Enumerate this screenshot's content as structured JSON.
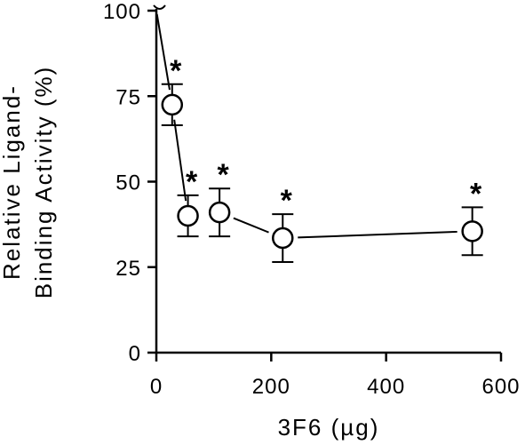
{
  "chart_data": {
    "type": "scatter",
    "xlabel": "3F6 (µg)",
    "ylabel_lines": [
      "Relative Ligand-",
      "Binding Activity (%)"
    ],
    "xlim": [
      0,
      600
    ],
    "ylim": [
      0,
      100
    ],
    "x_ticks": [
      0,
      200,
      400,
      600
    ],
    "y_ticks": [
      0,
      25,
      50,
      75,
      100
    ],
    "grid": false,
    "legend": "none",
    "series": [
      {
        "x": [
          0,
          27.5,
          55,
          110,
          220,
          550
        ],
        "y": [
          100,
          72.5,
          40,
          41,
          33.5,
          35.5
        ],
        "error": [
          0,
          6,
          6,
          7,
          7,
          7
        ],
        "significance": [
          "",
          "*",
          "*",
          "*",
          "*",
          "*"
        ]
      }
    ],
    "color": "#000000"
  }
}
